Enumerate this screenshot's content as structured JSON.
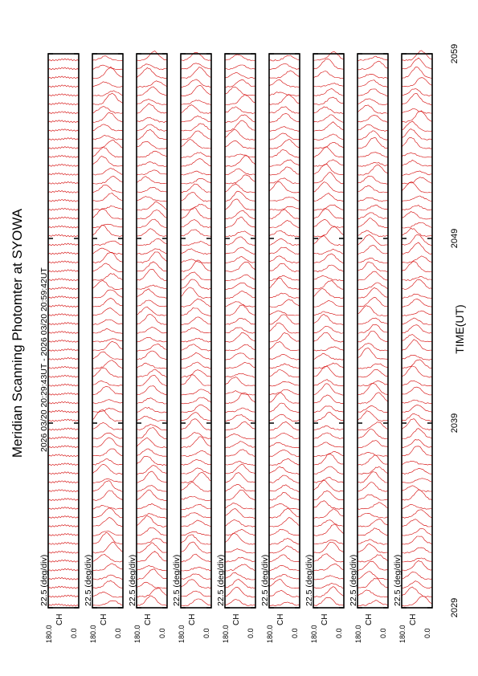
{
  "header": {
    "title": "Meridian Scanning Photomter at SYOWA",
    "subtitle": "2026 03/20 20:29:43UT - 2026 03/20 20:59:42UT"
  },
  "x_axis": {
    "label": "TIME(UT)",
    "ticks": [
      "2029",
      "2039",
      "2049",
      "2059"
    ]
  },
  "panels": [
    {
      "channel": "CH",
      "ymax": "180.0",
      "ymin": "0.0",
      "scale": "22.5 (deg/div)"
    },
    {
      "channel": "CH",
      "ymax": "180.0",
      "ymin": "0.0",
      "scale": "22.5 (deg/div)"
    },
    {
      "channel": "CH",
      "ymax": "180.0",
      "ymin": "0.0",
      "scale": "22.5 (deg/div)"
    },
    {
      "channel": "CH",
      "ymax": "180.0",
      "ymin": "0.0",
      "scale": "22.5 (deg/div)"
    },
    {
      "channel": "CH",
      "ymax": "180.0",
      "ymin": "0.0",
      "scale": "22.5 (deg/div)"
    },
    {
      "channel": "CH",
      "ymax": "180.0",
      "ymin": "0.0",
      "scale": "22.5 (deg/div)"
    },
    {
      "channel": "CH",
      "ymax": "180.0",
      "ymin": "0.0",
      "scale": "22.5 (deg/div)"
    },
    {
      "channel": "CH",
      "ymax": "180.0",
      "ymin": "0.0",
      "scale": "22.5 (deg/div)"
    },
    {
      "channel": "CH",
      "ymax": "180.0",
      "ymin": "0.0",
      "scale": "22.5 (deg/div)"
    }
  ]
}
